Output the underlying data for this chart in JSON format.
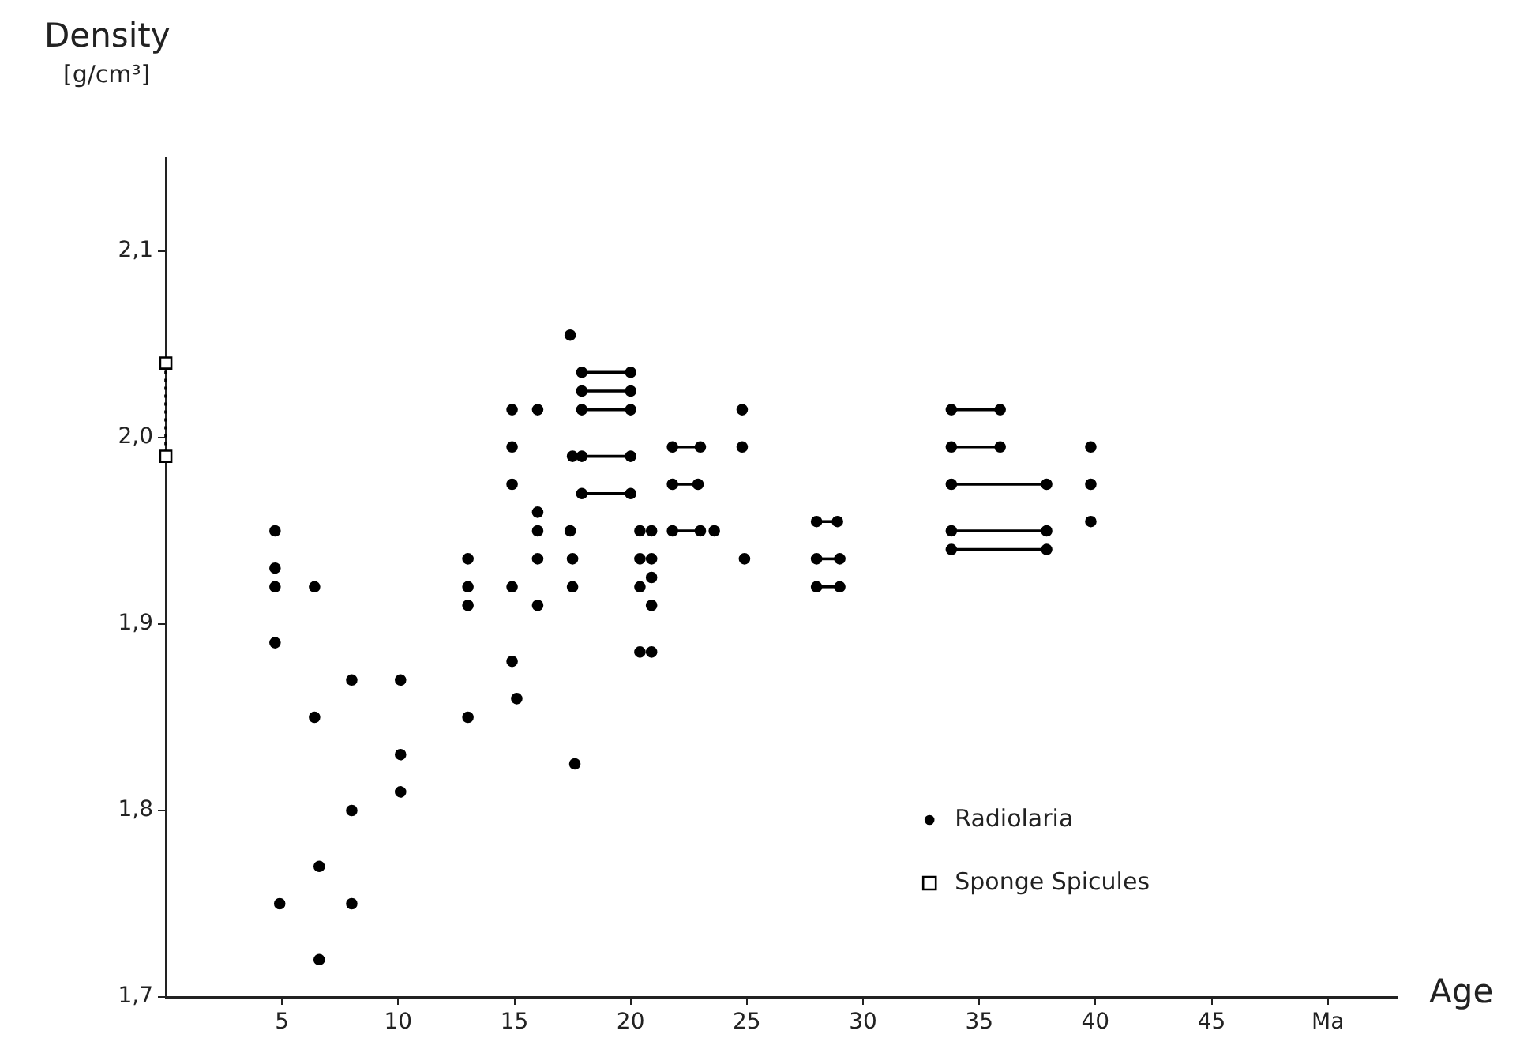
{
  "chart_data": {
    "type": "scatter",
    "xlabel": "Age",
    "ylabel": "Density",
    "annotations": [
      "[g/cm³]"
    ],
    "xlim": [
      0,
      53
    ],
    "xticks": [
      5,
      10,
      15,
      20,
      25,
      30,
      35,
      40,
      45,
      {
        "value": 50,
        "label": "Ma"
      }
    ],
    "ylim": [
      1.7,
      2.15
    ],
    "yticks": [
      {
        "value": 1.7,
        "label": "1,7"
      },
      {
        "value": 1.8,
        "label": "1,8"
      },
      {
        "value": 1.9,
        "label": "1,9"
      },
      {
        "value": 2.0,
        "label": "2,0"
      },
      {
        "value": 2.1,
        "label": "2,1"
      }
    ],
    "grid": false,
    "legend": "bottom right",
    "series": [
      {
        "name": "Radiolaria",
        "color": "#000000",
        "marker": "circle",
        "x": [
          4.7,
          4.7,
          4.7,
          4.7,
          4.9,
          6.4,
          6.4,
          6.6,
          6.6,
          8.0,
          8.0,
          8.0,
          10.1,
          10.1,
          10.1,
          13.0,
          13.0,
          13.0,
          13.0,
          14.9,
          16.0,
          14.9,
          14.9,
          16.0,
          16.0,
          14.9,
          16.0,
          16.0,
          14.9,
          15.1,
          17.4,
          17.5,
          17.4,
          17.5,
          17.5,
          17.6,
          20.4,
          20.9,
          20.4,
          20.9,
          20.4,
          20.9,
          20.9,
          20.4,
          20.9,
          23.6,
          24.8,
          24.8,
          24.9,
          39.8,
          39.8,
          39.8
        ],
        "values": [
          1.95,
          1.93,
          1.92,
          1.89,
          1.75,
          1.92,
          1.85,
          1.77,
          1.72,
          1.87,
          1.8,
          1.75,
          1.87,
          1.83,
          1.81,
          1.935,
          1.92,
          1.91,
          1.85,
          2.015,
          2.015,
          1.995,
          1.975,
          1.96,
          1.95,
          1.92,
          1.935,
          1.91,
          1.88,
          1.86,
          2.055,
          1.99,
          1.95,
          1.935,
          1.92,
          1.825,
          1.95,
          1.95,
          1.935,
          1.935,
          1.92,
          1.925,
          1.91,
          1.885,
          1.885,
          1.95,
          2.015,
          1.995,
          1.935,
          1.995,
          1.975,
          1.955
        ]
      },
      {
        "type": "line",
        "color": "#000000",
        "marker": "circle",
        "x": [
          17.9,
          20.0
        ],
        "values": [
          2.035,
          2.035
        ]
      },
      {
        "type": "line",
        "color": "#000000",
        "marker": "circle",
        "x": [
          17.9,
          20.0
        ],
        "values": [
          2.025,
          2.025
        ]
      },
      {
        "type": "line",
        "color": "#000000",
        "marker": "circle",
        "x": [
          17.9,
          20.0
        ],
        "values": [
          2.015,
          2.015
        ]
      },
      {
        "type": "line",
        "color": "#000000",
        "marker": "circle",
        "x": [
          17.9,
          20.0
        ],
        "values": [
          1.99,
          1.99
        ]
      },
      {
        "type": "line",
        "color": "#000000",
        "marker": "circle",
        "x": [
          17.9,
          20.0
        ],
        "values": [
          1.97,
          1.97
        ]
      },
      {
        "type": "line",
        "color": "#000000",
        "marker": "circle",
        "x": [
          21.8,
          23.0
        ],
        "values": [
          1.995,
          1.995
        ]
      },
      {
        "type": "line",
        "color": "#000000",
        "marker": "circle",
        "x": [
          21.8,
          22.9
        ],
        "values": [
          1.975,
          1.975
        ]
      },
      {
        "type": "line",
        "color": "#000000",
        "marker": "circle",
        "x": [
          21.8,
          23.0
        ],
        "values": [
          1.95,
          1.95
        ]
      },
      {
        "type": "line",
        "color": "#000000",
        "marker": "circle",
        "x": [
          28.0,
          28.9
        ],
        "values": [
          1.955,
          1.955
        ]
      },
      {
        "type": "line",
        "color": "#000000",
        "marker": "circle",
        "x": [
          28.0,
          29.0
        ],
        "values": [
          1.935,
          1.935
        ]
      },
      {
        "type": "line",
        "color": "#000000",
        "marker": "circle",
        "x": [
          28.0,
          29.0
        ],
        "values": [
          1.92,
          1.92
        ]
      },
      {
        "type": "line",
        "color": "#000000",
        "marker": "circle",
        "x": [
          33.8,
          35.9
        ],
        "values": [
          2.015,
          2.015
        ]
      },
      {
        "type": "line",
        "color": "#000000",
        "marker": "circle",
        "x": [
          33.8,
          35.9
        ],
        "values": [
          1.995,
          1.995
        ]
      },
      {
        "type": "line",
        "color": "#000000",
        "marker": "circle",
        "x": [
          33.8,
          37.9
        ],
        "values": [
          1.975,
          1.975
        ]
      },
      {
        "type": "line",
        "color": "#000000",
        "marker": "circle",
        "x": [
          33.8,
          37.9
        ],
        "values": [
          1.95,
          1.95
        ]
      },
      {
        "type": "line",
        "color": "#000000",
        "marker": "circle",
        "x": [
          33.8,
          37.9
        ],
        "values": [
          1.94,
          1.94
        ]
      },
      {
        "name": "Sponge Spicules",
        "type": "line",
        "color": "#000000",
        "marker": "square",
        "line_style": "dotted",
        "x": [
          0,
          0
        ],
        "values": [
          2.04,
          1.99
        ]
      }
    ]
  }
}
